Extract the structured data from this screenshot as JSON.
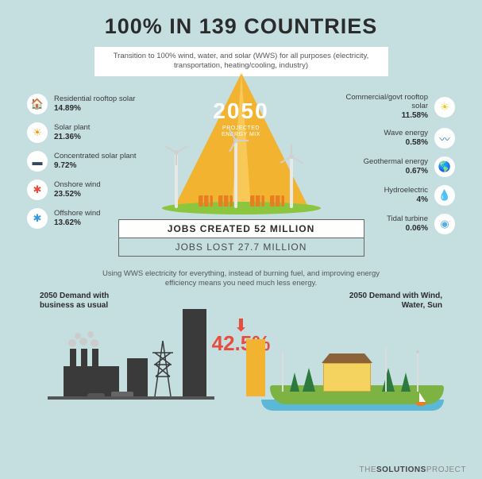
{
  "title": "100% IN 139 COUNTRIES",
  "title_fontsize": 27,
  "subtitle": "Transition to 100% wind, water, and solar (WWS) for all purposes (electricity, transportation, heating/cooling, industry)",
  "beam": {
    "year": "2050",
    "caption": "PROJECTED\nENERGY MIX",
    "beam_color": "#f2b430",
    "beam_inner_color": "#f8c956"
  },
  "left_sources": [
    {
      "label": "Residential rooftop solar",
      "pct": "14.89%",
      "icon": "🏠",
      "icon_color": "#e67e22"
    },
    {
      "label": "Solar plant",
      "pct": "21.36%",
      "icon": "☀",
      "icon_color": "#f39c12"
    },
    {
      "label": "Concentrated solar plant",
      "pct": "9.72%",
      "icon": "▬",
      "icon_color": "#34495e"
    },
    {
      "label": "Onshore wind",
      "pct": "23.52%",
      "icon": "✱",
      "icon_color": "#e74c3c"
    },
    {
      "label": "Offshore wind",
      "pct": "13.62%",
      "icon": "✱",
      "icon_color": "#3498db"
    }
  ],
  "right_sources": [
    {
      "label": "Commercial/govt rooftop solar",
      "pct": "11.58%",
      "icon": "☀",
      "icon_color": "#f1c40f"
    },
    {
      "label": "Wave energy",
      "pct": "0.58%",
      "icon": "〰",
      "icon_color": "#2980b9"
    },
    {
      "label": "Geothermal energy",
      "pct": "0.67%",
      "icon": "🌎",
      "icon_color": "#27ae60"
    },
    {
      "label": "Hydroelectric",
      "pct": "4%",
      "icon": "💧",
      "icon_color": "#3498db"
    },
    {
      "label": "Tidal turbine",
      "pct": "0.06%",
      "icon": "◉",
      "icon_color": "#5dade2"
    }
  ],
  "jobs": {
    "created": "JOBS CREATED 52 MILLION",
    "lost": "JOBS LOST 27.7 MILLION"
  },
  "lower": {
    "desc": "Using WWS electricity for everything, instead of burning fuel, and improving energy efficiency means you need much less energy.",
    "label_left": "2050 Demand with business as usual",
    "label_right": "2050 Demand with Wind, Water, Sun",
    "reduction_pct": "42.5%",
    "reduction_color": "#e74c3c",
    "yellow_bar_color": "#f2b430"
  },
  "colors": {
    "page_bg": "#c5dfe1",
    "ground": "#8cc63f",
    "grass": "#7cb342",
    "water": "#5bb8d6",
    "dark": "#3a3a3a"
  },
  "footer": {
    "pre": "THE",
    "bold": "SOLUTIONS",
    "post": "PROJECT"
  }
}
